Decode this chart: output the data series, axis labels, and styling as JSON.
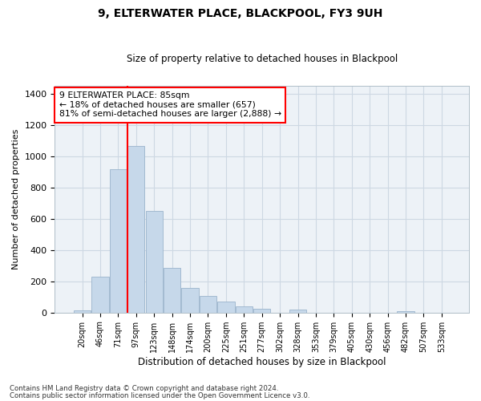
{
  "title": "9, ELTERWATER PLACE, BLACKPOOL, FY3 9UH",
  "subtitle": "Size of property relative to detached houses in Blackpool",
  "xlabel": "Distribution of detached houses by size in Blackpool",
  "ylabel": "Number of detached properties",
  "bar_color": "#c6d8ea",
  "bar_edge_color": "#9ab4cc",
  "grid_color": "#cdd8e3",
  "background_color": "#edf2f7",
  "categories": [
    "20sqm",
    "46sqm",
    "71sqm",
    "97sqm",
    "123sqm",
    "148sqm",
    "174sqm",
    "200sqm",
    "225sqm",
    "251sqm",
    "277sqm",
    "302sqm",
    "328sqm",
    "353sqm",
    "379sqm",
    "405sqm",
    "430sqm",
    "456sqm",
    "482sqm",
    "507sqm",
    "533sqm"
  ],
  "values": [
    15,
    228,
    918,
    1068,
    650,
    285,
    158,
    105,
    68,
    40,
    24,
    0,
    20,
    0,
    0,
    0,
    0,
    0,
    10,
    0,
    0
  ],
  "ylim": [
    0,
    1450
  ],
  "yticks": [
    0,
    200,
    400,
    600,
    800,
    1000,
    1200,
    1400
  ],
  "red_line_x": 2.5,
  "annotation_line1": "9 ELTERWATER PLACE: 85sqm",
  "annotation_line2": "← 18% of detached houses are smaller (657)",
  "annotation_line3": "81% of semi-detached houses are larger (2,888) →",
  "footnote1": "Contains HM Land Registry data © Crown copyright and database right 2024.",
  "footnote2": "Contains public sector information licensed under the Open Government Licence v3.0."
}
